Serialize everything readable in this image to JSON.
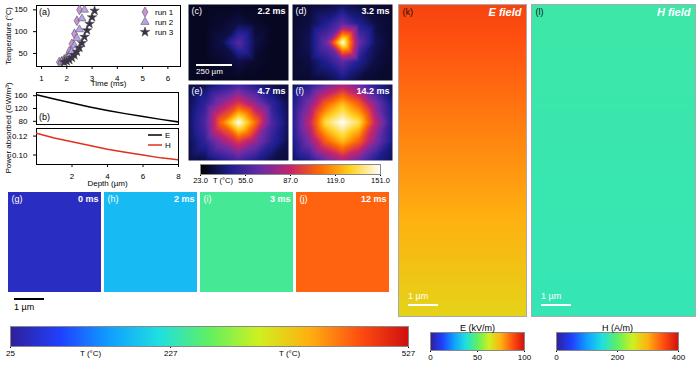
{
  "chart_data": [
    {
      "type": "scatter",
      "panel": "(a)",
      "xlabel": "Time (ms)",
      "ylabel": "Temperature (°C)",
      "xlim": [
        0.8,
        6.5
      ],
      "xticks": [
        1,
        2,
        3,
        4,
        5,
        6
      ],
      "ylim": [
        20,
        160
      ],
      "yticks": [
        50,
        100,
        150
      ],
      "legend": "top-right",
      "series": [
        {
          "name": "run 1",
          "color": "#c893d8",
          "marker": "diamond",
          "x": [
            1.7,
            1.8,
            1.9,
            2.0,
            2.1,
            2.2,
            2.3,
            2.4,
            2.5
          ],
          "values": [
            30,
            32,
            36,
            42,
            55,
            72,
            95,
            125,
            150
          ]
        },
        {
          "name": "run 2",
          "color": "#b9a3e6",
          "marker": "triangle",
          "x": [
            1.8,
            1.9,
            2.0,
            2.1,
            2.2,
            2.3,
            2.4,
            2.5,
            2.6,
            2.7
          ],
          "values": [
            31,
            34,
            38,
            45,
            55,
            68,
            85,
            105,
            130,
            150
          ]
        },
        {
          "name": "run 3",
          "color": "#3a3148",
          "marker": "star",
          "x": [
            1.9,
            2.0,
            2.1,
            2.2,
            2.3,
            2.4,
            2.5,
            2.6,
            2.7,
            2.8,
            2.9,
            3.0,
            3.1
          ],
          "values": [
            30,
            32,
            35,
            40,
            46,
            54,
            63,
            74,
            88,
            103,
            118,
            133,
            148
          ]
        }
      ]
    },
    {
      "type": "line",
      "panel": "(b)",
      "xlabel": "Depth (µm)",
      "ylabel": "Power absorbed (GW/m³)",
      "xlim": [
        0,
        8
      ],
      "xticks": [
        2,
        4,
        6,
        8
      ],
      "ylim": [
        70,
        170
      ],
      "yticks": [
        80,
        120,
        160
      ],
      "y2lim": [
        0.09,
        0.128
      ],
      "y2ticks": [
        {
          "value": 0.1,
          "label": "0.10"
        },
        {
          "value": 0.12,
          "label": "0.12"
        }
      ],
      "legend": "right",
      "x": [
        0,
        1,
        2,
        3,
        4,
        5,
        6,
        7,
        8
      ],
      "series": [
        {
          "name": "E",
          "color": "#000000",
          "values": [
            163,
            150,
            137,
            125,
            114,
            104,
            95,
            86,
            78
          ]
        },
        {
          "name": "H",
          "color": "#e0301e",
          "axis": "y2",
          "values": [
            0.123,
            0.118,
            0.114,
            0.11,
            0.106,
            0.103,
            0.1,
            0.097,
            0.095
          ]
        }
      ]
    },
    {
      "type": "heatmap",
      "scale_bar": "250 µm",
      "colorbar": {
        "label": "T (°C)",
        "range": [
          23,
          151
        ],
        "ticks": [
          {
            "value": 23,
            "label": "23.0"
          },
          {
            "value": 55,
            "label": "55.0"
          },
          {
            "value": 87,
            "label": "87.0"
          },
          {
            "value": 119,
            "label": "119.0"
          },
          {
            "value": 151,
            "label": "151.0"
          }
        ]
      },
      "panels": [
        {
          "panel": "(c)",
          "time": "2.2 ms",
          "cells": [
            [
              28,
              28,
              28,
              28,
              28,
              28,
              28
            ],
            [
              28,
              28,
              30,
              34,
              30,
              28,
              28
            ],
            [
              28,
              28,
              34,
              60,
              34,
              28,
              28
            ],
            [
              28,
              28,
              30,
              34,
              30,
              28,
              28
            ],
            [
              28,
              28,
              28,
              28,
              28,
              28,
              28
            ]
          ]
        },
        {
          "panel": "(d)",
          "time": "3.2 ms",
          "cells": [
            [
              30,
              30,
              32,
              36,
              32,
              30,
              30
            ],
            [
              30,
              33,
              45,
              62,
              45,
              33,
              30
            ],
            [
              30,
              36,
              65,
              151,
              65,
              36,
              30
            ],
            [
              30,
              33,
              45,
              62,
              45,
              33,
              30
            ],
            [
              30,
              30,
              32,
              40,
              32,
              30,
              30
            ]
          ]
        },
        {
          "panel": "(e)",
          "time": "4.7 ms",
          "cells": [
            [
              32,
              34,
              45,
              55,
              45,
              34,
              32
            ],
            [
              34,
              50,
              75,
              95,
              75,
              50,
              34
            ],
            [
              36,
              58,
              110,
              151,
              110,
              58,
              36
            ],
            [
              34,
              50,
              75,
              95,
              75,
              50,
              34
            ],
            [
              32,
              34,
              45,
              55,
              45,
              34,
              32
            ]
          ]
        },
        {
          "panel": "(f)",
          "time": "14.2 ms",
          "cells": [
            [
              35,
              45,
              65,
              80,
              65,
              45,
              35
            ],
            [
              42,
              70,
              105,
              125,
              105,
              70,
              42
            ],
            [
              45,
              85,
              135,
              151,
              135,
              85,
              45
            ],
            [
              42,
              70,
              105,
              125,
              105,
              70,
              42
            ],
            [
              35,
              45,
              65,
              80,
              65,
              45,
              35
            ]
          ]
        }
      ]
    },
    {
      "type": "heatmap",
      "scale_bar": "1 µm",
      "colorbar": {
        "labels": [
          "T (°C)",
          "T (°C)"
        ],
        "range": [
          25,
          527
        ],
        "ticks": [
          25,
          227,
          527
        ]
      },
      "panels": [
        {
          "panel": "(g)",
          "time": "0 ms",
          "value": 50
        },
        {
          "panel": "(h)",
          "time": "2 ms",
          "value": 176
        },
        {
          "panel": "(i)",
          "time": "3 ms",
          "value": 250
        },
        {
          "panel": "(j)",
          "time": "12 ms",
          "value": 452
        }
      ]
    },
    {
      "type": "heatmap",
      "panel": "(k)",
      "title": "E field",
      "scale_bar": "1 µm",
      "colorbar": {
        "label": "E (kV/m)",
        "range": [
          0,
          100
        ],
        "ticks": [
          0,
          50,
          100
        ]
      },
      "rows": [
        90,
        88,
        86,
        84,
        82,
        80,
        78,
        76,
        74,
        72,
        70,
        68
      ]
    },
    {
      "type": "heatmap",
      "panel": "(l)",
      "title": "H field",
      "scale_bar": "1 µm",
      "colorbar": {
        "label": "H (A/m)",
        "range": [
          0,
          400
        ],
        "ticks": [
          0,
          200,
          400
        ]
      },
      "rows": [
        172,
        172,
        171,
        171,
        170,
        170,
        169,
        169,
        168,
        168,
        167,
        167
      ]
    }
  ]
}
